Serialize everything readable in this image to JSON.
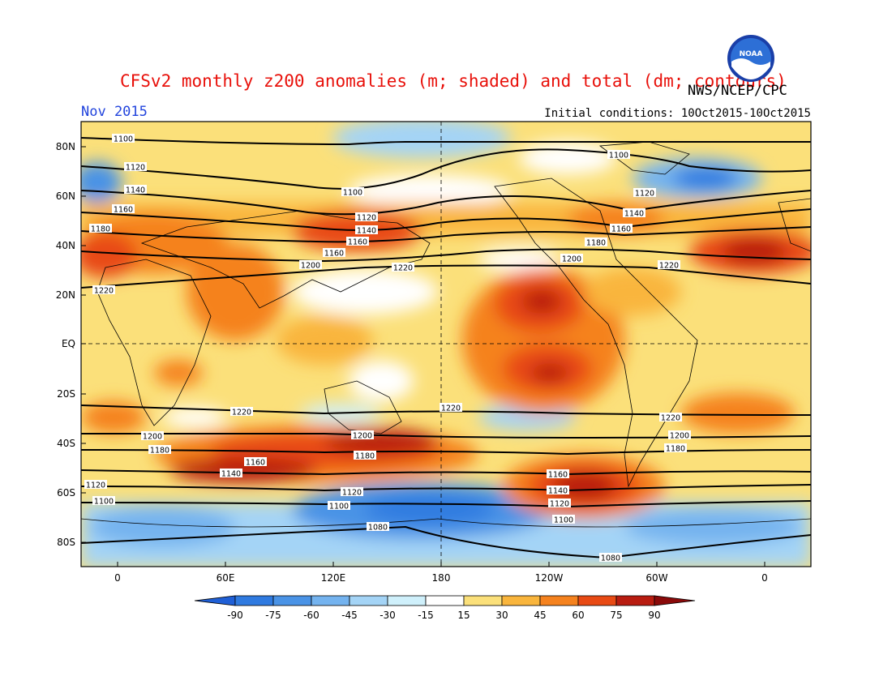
{
  "title": "CFSv2 monthly z200 anomalies (m; shaded) and total (dm; contours)",
  "agency": "NWS/NCEP/CPC",
  "logo_text": "NOAA",
  "month_label": "Nov 2015",
  "initial_conditions": "Initial conditions: 10Oct2015-10Oct2015",
  "lat_labels": [
    "80N",
    "60N",
    "40N",
    "20N",
    "EQ",
    "20S",
    "40S",
    "60S",
    "80S"
  ],
  "lon_labels": [
    "0",
    "60E",
    "120E",
    "180",
    "120W",
    "60W",
    "0"
  ],
  "colorbar": {
    "ticks": [
      "-90",
      "-75",
      "-60",
      "-45",
      "-30",
      "-15",
      "15",
      "30",
      "45",
      "60",
      "75",
      "90"
    ],
    "colors": [
      "#1f5fd6",
      "#2f7ae0",
      "#4a93e6",
      "#74b3ef",
      "#a4d4f6",
      "#cff0fb",
      "#ffffff",
      "#fbe07a",
      "#f9b53c",
      "#f5821e",
      "#e84a14",
      "#b81c10",
      "#8a0a0a"
    ]
  },
  "contour_labels": [
    "1100",
    "1120",
    "1140",
    "1160",
    "1180",
    "1200",
    "1220",
    "1080"
  ]
}
